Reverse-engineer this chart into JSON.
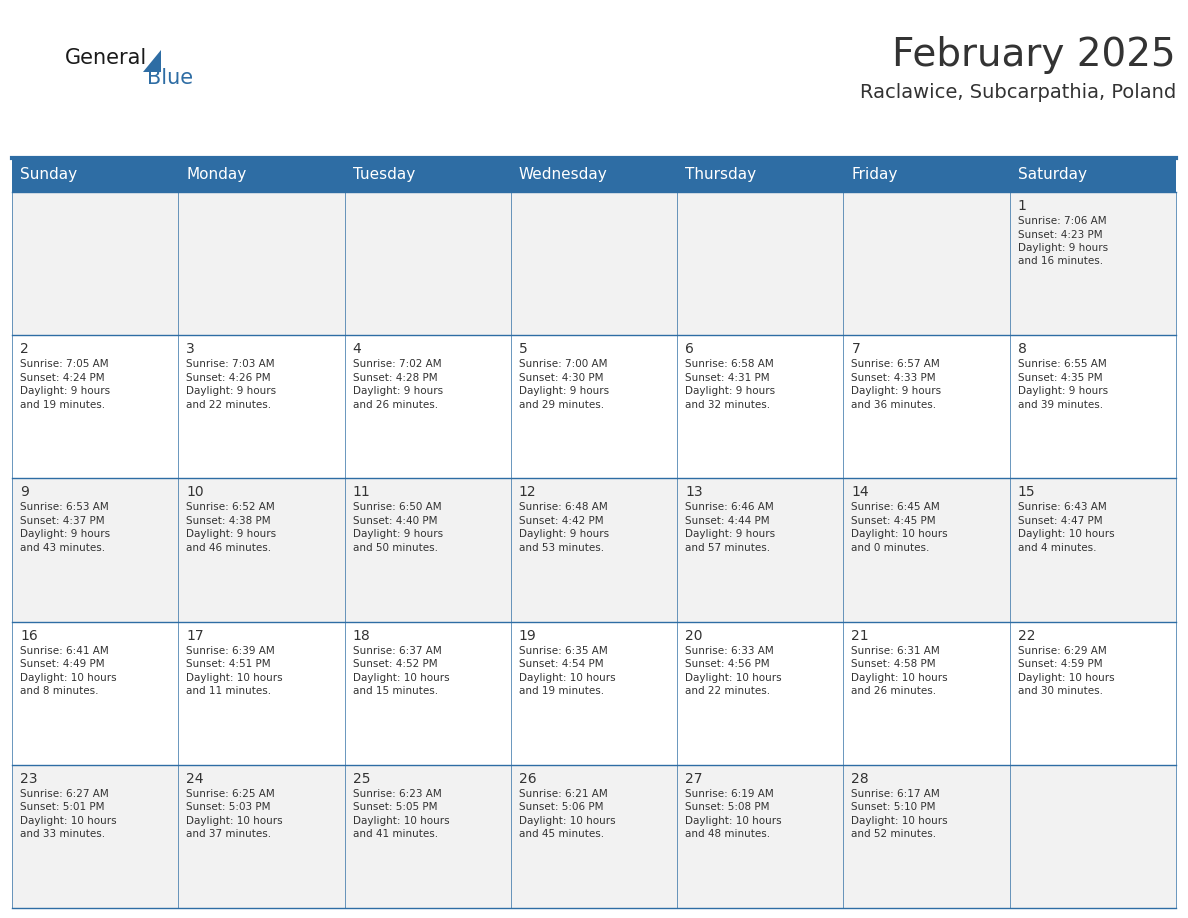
{
  "title": "February 2025",
  "subtitle": "Raclawice, Subcarpathia, Poland",
  "header_bg": "#2E6DA4",
  "header_text_color": "#FFFFFF",
  "cell_bg": "#F2F2F2",
  "cell_bg_white": "#FFFFFF",
  "border_color": "#2E6DA4",
  "text_color": "#333333",
  "day_headers": [
    "Sunday",
    "Monday",
    "Tuesday",
    "Wednesday",
    "Thursday",
    "Friday",
    "Saturday"
  ],
  "days": [
    {
      "day": 1,
      "col": 6,
      "row": 0,
      "sunrise": "7:06 AM",
      "sunset": "4:23 PM",
      "daylight": "9 hours and 16 minutes."
    },
    {
      "day": 2,
      "col": 0,
      "row": 1,
      "sunrise": "7:05 AM",
      "sunset": "4:24 PM",
      "daylight": "9 hours and 19 minutes."
    },
    {
      "day": 3,
      "col": 1,
      "row": 1,
      "sunrise": "7:03 AM",
      "sunset": "4:26 PM",
      "daylight": "9 hours and 22 minutes."
    },
    {
      "day": 4,
      "col": 2,
      "row": 1,
      "sunrise": "7:02 AM",
      "sunset": "4:28 PM",
      "daylight": "9 hours and 26 minutes."
    },
    {
      "day": 5,
      "col": 3,
      "row": 1,
      "sunrise": "7:00 AM",
      "sunset": "4:30 PM",
      "daylight": "9 hours and 29 minutes."
    },
    {
      "day": 6,
      "col": 4,
      "row": 1,
      "sunrise": "6:58 AM",
      "sunset": "4:31 PM",
      "daylight": "9 hours and 32 minutes."
    },
    {
      "day": 7,
      "col": 5,
      "row": 1,
      "sunrise": "6:57 AM",
      "sunset": "4:33 PM",
      "daylight": "9 hours and 36 minutes."
    },
    {
      "day": 8,
      "col": 6,
      "row": 1,
      "sunrise": "6:55 AM",
      "sunset": "4:35 PM",
      "daylight": "9 hours and 39 minutes."
    },
    {
      "day": 9,
      "col": 0,
      "row": 2,
      "sunrise": "6:53 AM",
      "sunset": "4:37 PM",
      "daylight": "9 hours and 43 minutes."
    },
    {
      "day": 10,
      "col": 1,
      "row": 2,
      "sunrise": "6:52 AM",
      "sunset": "4:38 PM",
      "daylight": "9 hours and 46 minutes."
    },
    {
      "day": 11,
      "col": 2,
      "row": 2,
      "sunrise": "6:50 AM",
      "sunset": "4:40 PM",
      "daylight": "9 hours and 50 minutes."
    },
    {
      "day": 12,
      "col": 3,
      "row": 2,
      "sunrise": "6:48 AM",
      "sunset": "4:42 PM",
      "daylight": "9 hours and 53 minutes."
    },
    {
      "day": 13,
      "col": 4,
      "row": 2,
      "sunrise": "6:46 AM",
      "sunset": "4:44 PM",
      "daylight": "9 hours and 57 minutes."
    },
    {
      "day": 14,
      "col": 5,
      "row": 2,
      "sunrise": "6:45 AM",
      "sunset": "4:45 PM",
      "daylight": "10 hours and 0 minutes."
    },
    {
      "day": 15,
      "col": 6,
      "row": 2,
      "sunrise": "6:43 AM",
      "sunset": "4:47 PM",
      "daylight": "10 hours and 4 minutes."
    },
    {
      "day": 16,
      "col": 0,
      "row": 3,
      "sunrise": "6:41 AM",
      "sunset": "4:49 PM",
      "daylight": "10 hours and 8 minutes."
    },
    {
      "day": 17,
      "col": 1,
      "row": 3,
      "sunrise": "6:39 AM",
      "sunset": "4:51 PM",
      "daylight": "10 hours and 11 minutes."
    },
    {
      "day": 18,
      "col": 2,
      "row": 3,
      "sunrise": "6:37 AM",
      "sunset": "4:52 PM",
      "daylight": "10 hours and 15 minutes."
    },
    {
      "day": 19,
      "col": 3,
      "row": 3,
      "sunrise": "6:35 AM",
      "sunset": "4:54 PM",
      "daylight": "10 hours and 19 minutes."
    },
    {
      "day": 20,
      "col": 4,
      "row": 3,
      "sunrise": "6:33 AM",
      "sunset": "4:56 PM",
      "daylight": "10 hours and 22 minutes."
    },
    {
      "day": 21,
      "col": 5,
      "row": 3,
      "sunrise": "6:31 AM",
      "sunset": "4:58 PM",
      "daylight": "10 hours and 26 minutes."
    },
    {
      "day": 22,
      "col": 6,
      "row": 3,
      "sunrise": "6:29 AM",
      "sunset": "4:59 PM",
      "daylight": "10 hours and 30 minutes."
    },
    {
      "day": 23,
      "col": 0,
      "row": 4,
      "sunrise": "6:27 AM",
      "sunset": "5:01 PM",
      "daylight": "10 hours and 33 minutes."
    },
    {
      "day": 24,
      "col": 1,
      "row": 4,
      "sunrise": "6:25 AM",
      "sunset": "5:03 PM",
      "daylight": "10 hours and 37 minutes."
    },
    {
      "day": 25,
      "col": 2,
      "row": 4,
      "sunrise": "6:23 AM",
      "sunset": "5:05 PM",
      "daylight": "10 hours and 41 minutes."
    },
    {
      "day": 26,
      "col": 3,
      "row": 4,
      "sunrise": "6:21 AM",
      "sunset": "5:06 PM",
      "daylight": "10 hours and 45 minutes."
    },
    {
      "day": 27,
      "col": 4,
      "row": 4,
      "sunrise": "6:19 AM",
      "sunset": "5:08 PM",
      "daylight": "10 hours and 48 minutes."
    },
    {
      "day": 28,
      "col": 5,
      "row": 4,
      "sunrise": "6:17 AM",
      "sunset": "5:10 PM",
      "daylight": "10 hours and 52 minutes."
    }
  ],
  "num_rows": 5,
  "num_cols": 7,
  "logo_color1": "#1a1a1a",
  "logo_color2": "#2E6DA4",
  "title_fontsize": 28,
  "subtitle_fontsize": 14,
  "header_fontsize": 11,
  "day_num_fontsize": 10,
  "cell_fontsize": 7.5
}
